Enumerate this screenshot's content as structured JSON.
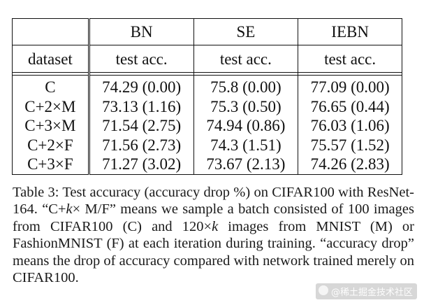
{
  "table": {
    "columns": [
      "",
      "BN",
      "SE",
      "IEBN"
    ],
    "subheader": [
      "dataset",
      "test acc.",
      "test acc.",
      "test acc."
    ],
    "rows": [
      {
        "dataset": "C",
        "bn": "74.29 (0.00)",
        "se": "75.8 (0.00)",
        "iebn": "77.09 (0.00)"
      },
      {
        "dataset": "C+2×M",
        "bn": "73.13 (1.16)",
        "se": "75.3 (0.50)",
        "iebn": "76.65 (0.44)"
      },
      {
        "dataset": "C+3×M",
        "bn": "71.54 (2.75)",
        "se": "74.94 (0.86)",
        "iebn": "76.03 (1.06)"
      },
      {
        "dataset": "C+2×F",
        "bn": "71.56 (2.73)",
        "se": "74.3 (1.51)",
        "iebn": "75.57 (1.52)"
      },
      {
        "dataset": "C+3×F",
        "bn": "71.27 (3.02)",
        "se": "73.67 (2.13)",
        "iebn": "74.26 (2.83)"
      }
    ]
  },
  "caption": {
    "part1": "Table 3: Test accuracy (accuracy drop %) on CIFAR100 with ResNet-164. “C+",
    "k1": "k",
    "part2": "× M/F” means we sample a batch consisted of 100 images from CIFAR100 (C) and 120×",
    "k2": "k",
    "part3": " images from MNIST (M) or FashionMNIST (F) at each iteration during training. “accuracy drop” means the drop of accuracy compared with network trained merely on CIFAR100."
  },
  "watermark": {
    "text": "@稀土掘金技术社区"
  }
}
